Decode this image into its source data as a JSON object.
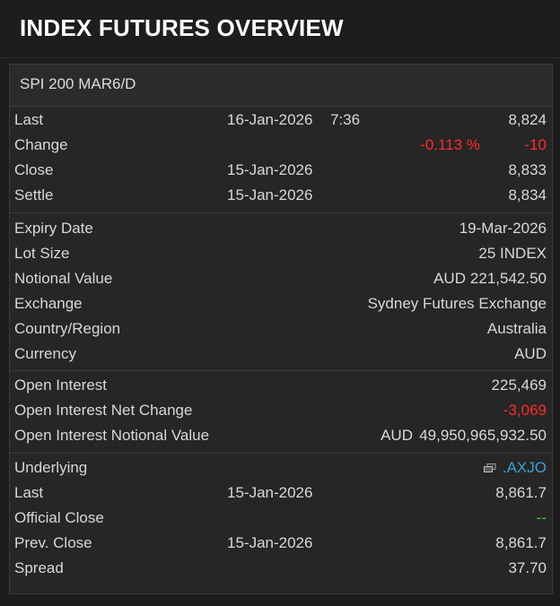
{
  "page": {
    "title": "INDEX FUTURES OVERVIEW"
  },
  "panel": {
    "title": "SPI 200 MAR6/D"
  },
  "quote": {
    "last": {
      "label": "Last",
      "date": "16-Jan-2026",
      "time": "7:36",
      "value": "8,824"
    },
    "change": {
      "label": "Change",
      "pct": "-0.113 %",
      "value": "-10"
    },
    "close": {
      "label": "Close",
      "date": "15-Jan-2026",
      "value": "8,833"
    },
    "settle": {
      "label": "Settle",
      "date": "15-Jan-2026",
      "value": "8,834"
    }
  },
  "contract": {
    "expiry": {
      "label": "Expiry Date",
      "value": "19-Mar-2026"
    },
    "lot_size": {
      "label": "Lot Size",
      "value": "25 INDEX"
    },
    "notional": {
      "label": "Notional Value",
      "unit": "AUD",
      "value": "221,542.50"
    },
    "exchange": {
      "label": "Exchange",
      "value": "Sydney Futures Exchange"
    },
    "country": {
      "label": "Country/Region",
      "value": "Australia"
    },
    "currency": {
      "label": "Currency",
      "value": "AUD"
    }
  },
  "open_interest": {
    "oi": {
      "label": "Open Interest",
      "value": "225,469"
    },
    "net_change": {
      "label": "Open Interest Net Change",
      "value": "-3,069"
    },
    "notional": {
      "label": "Open Interest Notional Value",
      "unit": "AUD",
      "value": "49,950,965,932.50"
    }
  },
  "underlying": {
    "underlying": {
      "label": "Underlying",
      "value": ".AXJO",
      "icon": "quote-window-icon"
    },
    "last": {
      "label": "Last",
      "date": "15-Jan-2026",
      "value": "8,861.7"
    },
    "official_close": {
      "label": "Official Close",
      "value": "--"
    },
    "prev_close": {
      "label": "Prev. Close",
      "date": "15-Jan-2026",
      "value": "8,861.7"
    },
    "spread": {
      "label": "Spread",
      "value": "37.70"
    }
  },
  "colors": {
    "negative": "#ff2a2a",
    "positive": "#33d633",
    "link": "#3ba0d8"
  }
}
